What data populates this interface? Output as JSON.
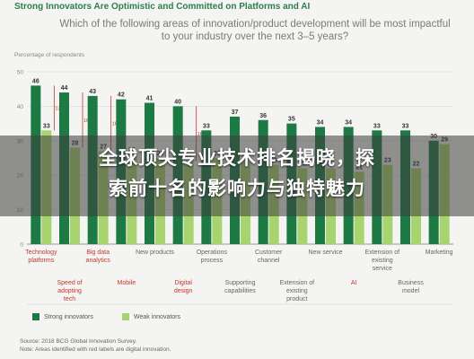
{
  "header": {
    "title": "Strong Innovators Are Optimistic and Committed on Platforms and AI",
    "subtitle": "Which of the following areas of innovation/product development will be most impactful to your industry over the next 3–5 years?"
  },
  "overlay": {
    "line1": "全球顶尖专业技术排名揭晓，探",
    "line2": "索前十名的影响力与独特魅力"
  },
  "source": {
    "line1": "Source: 2018 BCG Global Innovation Survey.",
    "line2": "Note: Areas identified with red labels are digital innovation."
  },
  "colors": {
    "strong": "#1e7a45",
    "weak": "#a8d46f",
    "digital_label": "#c0392b",
    "label": "#2e7d4f",
    "axis": "#888888"
  },
  "chart_data": {
    "type": "bar",
    "ylabel": "Percentage of respondents",
    "ylim": [
      0,
      50
    ],
    "yticks": [
      0,
      10,
      20,
      30,
      40,
      50
    ],
    "categories": [
      "Technology platforms",
      "Speed of adopting tech",
      "Big data analytics",
      "Mobile",
      "New products",
      "Digital design",
      "Operations process",
      "Supporting capabilities",
      "Customer channel",
      "Extension of existing product",
      "New service",
      "AI",
      "Extension of existing service",
      "Business model",
      "Marketing"
    ],
    "digital": [
      true,
      true,
      true,
      true,
      false,
      true,
      false,
      false,
      false,
      false,
      false,
      true,
      false,
      false,
      false
    ],
    "series": [
      {
        "name": "Strong innovators",
        "values": [
          46,
          44,
          43,
          42,
          41,
          40,
          33,
          37,
          36,
          35,
          34,
          34,
          33,
          33,
          30
        ]
      },
      {
        "name": "Weak innovators",
        "values": [
          33,
          28,
          27,
          26,
          25,
          24,
          25,
          24,
          23,
          22,
          22,
          21,
          23,
          22,
          29
        ]
      }
    ],
    "gaps": [
      "13",
      "16",
      "16",
      "",
      "",
      "16",
      "",
      "",
      "",
      "",
      "",
      "",
      "",
      "",
      ""
    ],
    "legend": {
      "strong": "Strong innovators",
      "weak": "Weak innovators"
    }
  }
}
